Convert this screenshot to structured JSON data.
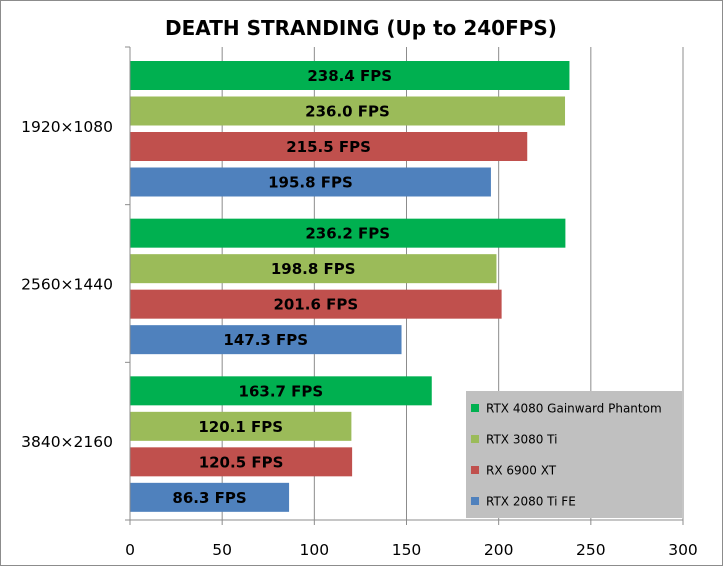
{
  "chart_data": {
    "type": "bar",
    "orientation": "horizontal",
    "title": "DEATH STRANDING (Up to 240FPS)",
    "xlabel": "",
    "ylabel": "",
    "xlim": [
      0,
      300
    ],
    "xticks": [
      0,
      50,
      100,
      150,
      200,
      250,
      300
    ],
    "grid": "vertical-major",
    "value_suffix": " FPS",
    "categories": [
      "1920×1080",
      "2560×1440",
      "3840×2160"
    ],
    "series": [
      {
        "name": "RTX 4080 Gainward Phantom",
        "color": "#00b050",
        "values": [
          238.4,
          236.2,
          163.7
        ]
      },
      {
        "name": "RTX 3080 Ti",
        "color": "#9bbb59",
        "values": [
          236.0,
          198.8,
          120.1
        ]
      },
      {
        "name": "RX 6900 XT",
        "color": "#c0504d",
        "values": [
          215.5,
          201.6,
          120.5
        ]
      },
      {
        "name": "RTX 2080 Ti FE",
        "color": "#4f81bd",
        "values": [
          195.8,
          147.3,
          86.3
        ]
      }
    ],
    "data_labels": [
      [
        "238.4 FPS",
        "236.0 FPS",
        "215.5 FPS",
        "195.8 FPS"
      ],
      [
        "236.2 FPS",
        "198.8 FPS",
        "201.6 FPS",
        "147.3 FPS"
      ],
      [
        "163.7 FPS",
        "120.1 FPS",
        "120.5 FPS",
        "86.3 FPS"
      ]
    ],
    "legend": {
      "position": "bottom-right",
      "background": "#c0c0c0"
    }
  }
}
